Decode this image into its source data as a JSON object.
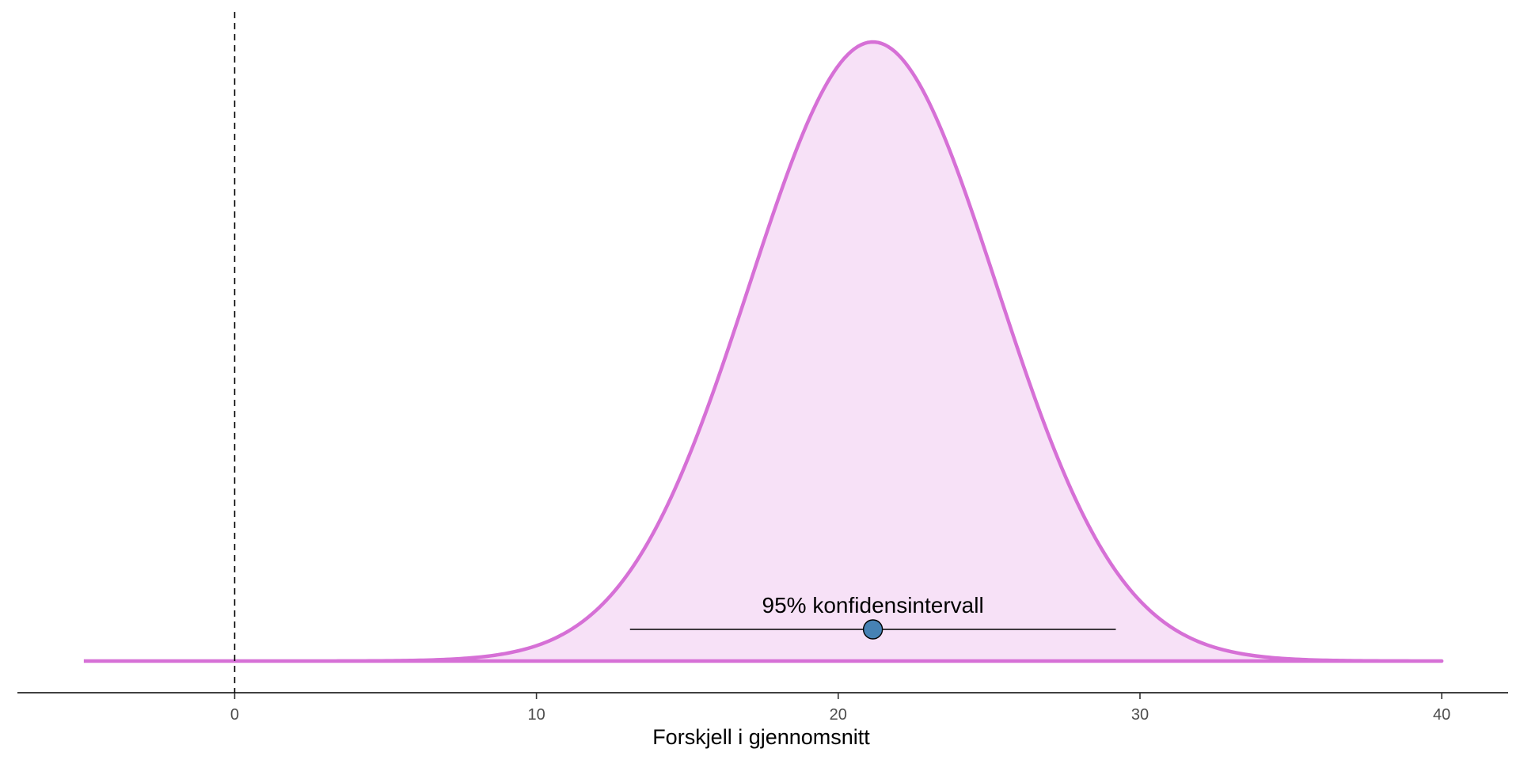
{
  "chart_data": {
    "type": "area",
    "title": "",
    "xlabel": "Forskjell i gjennomsnitt",
    "ylabel": "",
    "xlim": [
      -7.2,
      42.2
    ],
    "x_ticks": [
      0,
      10,
      20,
      30,
      40
    ],
    "y_axis_shown": false,
    "grid": false,
    "legend": "none",
    "series": [
      {
        "kind": "normal-density",
        "mean": 21.15,
        "sd": 4.1,
        "x_range": [
          -5,
          40
        ]
      }
    ],
    "reference_line": {
      "x": 0,
      "style": "dashed"
    },
    "confidence_interval": {
      "label": "95% konfidensintervall",
      "estimate": 21.15,
      "lower": 13.1,
      "upper": 29.2
    },
    "colors": {
      "curve": "#d670d6",
      "fill": "#f7e1f7",
      "point": "#4682b4",
      "axis": "#000000"
    }
  }
}
